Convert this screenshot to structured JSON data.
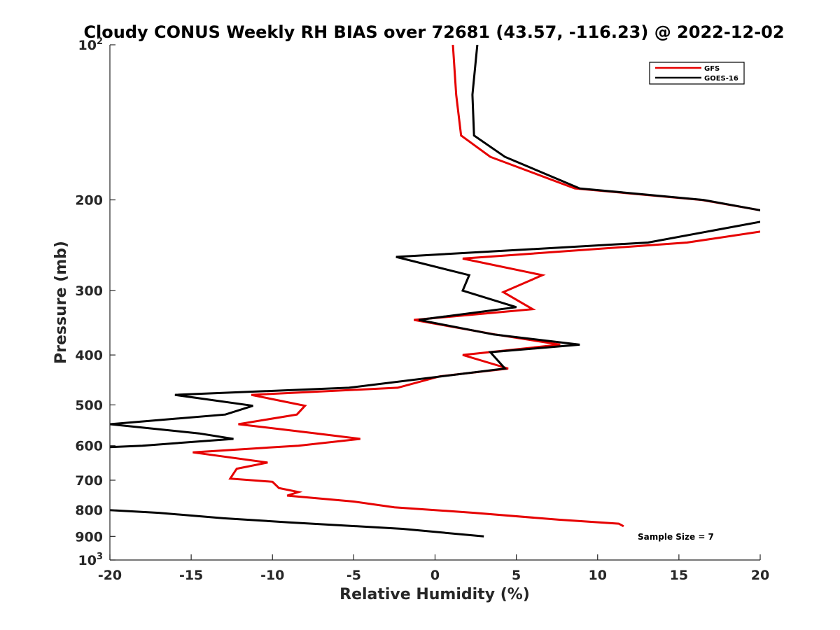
{
  "chart_data": {
    "type": "line",
    "title": "Cloudy CONUS Weekly RH BIAS over 72681 (43.57, -116.23) @ 2022-12-02",
    "xlabel": "Relative Humidity (%)",
    "ylabel": "Pressure (mb)",
    "xlim": [
      -20,
      20
    ],
    "ylim": [
      100,
      1000
    ],
    "y_scale": "log",
    "y_reversed": true,
    "grid": false,
    "legend_position": "top-right",
    "x_ticks": [
      -20,
      -15,
      -10,
      -5,
      0,
      5,
      10,
      15,
      20
    ],
    "x_tick_labels": [
      "-20",
      "-15",
      "-10",
      "-5",
      "0",
      "5",
      "10",
      "15",
      "20"
    ],
    "y_ticks": [
      100,
      200,
      300,
      400,
      500,
      600,
      700,
      800,
      900,
      1000
    ],
    "y_tick_labels": [
      {
        "base": "10",
        "sup": "2"
      },
      {
        "base": "200",
        "sup": ""
      },
      {
        "base": "300",
        "sup": ""
      },
      {
        "base": "400",
        "sup": ""
      },
      {
        "base": "500",
        "sup": ""
      },
      {
        "base": "600",
        "sup": ""
      },
      {
        "base": "700",
        "sup": ""
      },
      {
        "base": "800",
        "sup": ""
      },
      {
        "base": "900",
        "sup": ""
      },
      {
        "base": "10",
        "sup": "3"
      }
    ],
    "series": [
      {
        "name": "GFS",
        "color": "#e60000",
        "points": [
          [
            1.1,
            100
          ],
          [
            1.3,
            125
          ],
          [
            1.6,
            150
          ],
          [
            3.4,
            165
          ],
          [
            8.6,
            190
          ],
          [
            16.4,
            200
          ],
          [
            20.2,
            210
          ],
          [
            20.2,
            230
          ],
          [
            15.5,
            242
          ],
          [
            1.7,
            260
          ],
          [
            6.6,
            280
          ],
          [
            4.2,
            302
          ],
          [
            6.0,
            326
          ],
          [
            -1.3,
            342
          ],
          [
            3.7,
            365
          ],
          [
            7.7,
            382
          ],
          [
            1.7,
            400
          ],
          [
            4.5,
            425
          ],
          [
            0.3,
            440
          ],
          [
            -2.3,
            463
          ],
          [
            -11.3,
            478
          ],
          [
            -8.0,
            502
          ],
          [
            -8.5,
            522
          ],
          [
            -12.1,
            545
          ],
          [
            -7.3,
            568
          ],
          [
            -4.6,
            582
          ],
          [
            -8.4,
            600
          ],
          [
            -14.9,
            618
          ],
          [
            -10.3,
            647
          ],
          [
            -12.2,
            665
          ],
          [
            -12.6,
            695
          ],
          [
            -10.0,
            705
          ],
          [
            -9.6,
            725
          ],
          [
            -8.4,
            738
          ],
          [
            -9.1,
            750
          ],
          [
            -5.0,
            770
          ],
          [
            -2.5,
            790
          ],
          [
            2.4,
            810
          ],
          [
            7.6,
            835
          ],
          [
            11.3,
            850
          ],
          [
            11.6,
            860
          ]
        ]
      },
      {
        "name": "GOES-16",
        "color": "#000000",
        "points": [
          [
            2.6,
            100
          ],
          [
            2.3,
            125
          ],
          [
            2.4,
            150
          ],
          [
            4.3,
            165
          ],
          [
            8.9,
            190
          ],
          [
            16.5,
            200
          ],
          [
            20.2,
            210
          ],
          [
            20.2,
            220
          ],
          [
            13.1,
            242
          ],
          [
            -2.4,
            258
          ],
          [
            2.1,
            280
          ],
          [
            1.7,
            300
          ],
          [
            5.0,
            323
          ],
          [
            -1.0,
            342
          ],
          [
            3.6,
            365
          ],
          [
            8.9,
            382
          ],
          [
            3.4,
            395
          ],
          [
            4.3,
            425
          ],
          [
            -5.3,
            463
          ],
          [
            -16.0,
            478
          ],
          [
            -11.2,
            502
          ],
          [
            -12.9,
            522
          ],
          [
            -20.0,
            545
          ],
          [
            -14.5,
            568
          ],
          [
            -12.4,
            582
          ],
          [
            -18.0,
            600
          ],
          [
            -20.0,
            604
          ]
        ],
        "points_lower": [
          [
            -20.0,
            800
          ],
          [
            -17.0,
            810
          ],
          [
            -13.0,
            830
          ],
          [
            -9.0,
            845
          ],
          [
            -2.0,
            870
          ],
          [
            3.0,
            900
          ]
        ]
      }
    ],
    "annotation": "Sample Size = 7"
  }
}
